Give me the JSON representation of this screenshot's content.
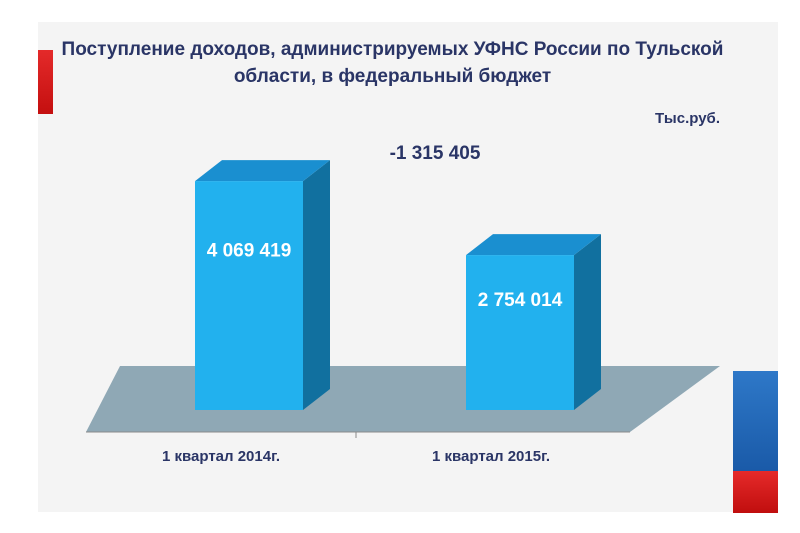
{
  "chart_data": {
    "type": "bar",
    "title": "Поступление доходов, администрируемых УФНС России по Тульской области, в федеральный бюджет",
    "unit_label": "Тыс.руб.",
    "categories": [
      "1 квартал 2014г.",
      "1 квартал 2015г."
    ],
    "values": [
      4069419,
      2754014
    ],
    "data_labels": [
      "4 069 419",
      "2 754 014"
    ],
    "difference_label": "-1 315 405",
    "difference_value": -1315405,
    "ylim": [
      0,
      4800000
    ],
    "grid": false,
    "legend": "none"
  },
  "colors": {
    "bar_front": "#22b1ee",
    "bar_top": "#1a8fd0",
    "bar_side": "#11709f",
    "floor": "#8fa8b5",
    "text": "#2a3566",
    "accent_red": "#d81e1e",
    "accent_blue": "#2368b8"
  }
}
